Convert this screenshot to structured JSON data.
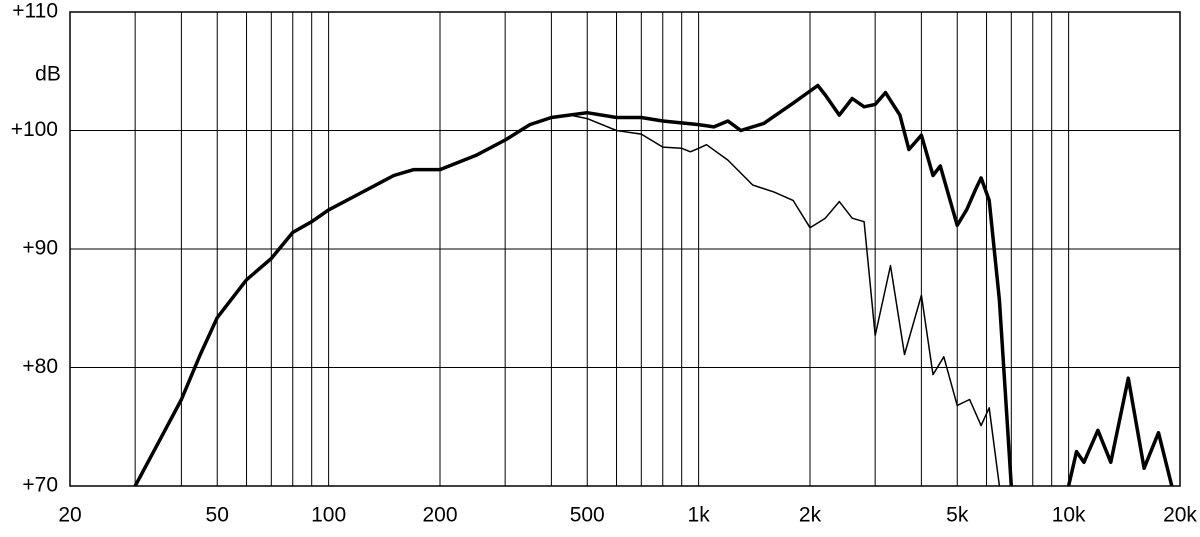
{
  "chart_data": {
    "type": "line",
    "y_label": "dB",
    "log_x": true,
    "grid": true,
    "xlim": [
      20,
      20000
    ],
    "ylim": [
      70,
      110
    ],
    "xticks": [
      20,
      50,
      100,
      200,
      500,
      {
        "value": 1000,
        "label": "1k"
      },
      {
        "value": 2000,
        "label": "2k"
      },
      {
        "value": 5000,
        "label": "5k"
      },
      {
        "value": 10000,
        "label": "10k"
      },
      {
        "value": 20000,
        "label": "20k"
      }
    ],
    "xgrid": [
      30,
      40,
      60,
      70,
      80,
      90,
      300,
      400,
      600,
      700,
      800,
      900,
      3000,
      4000,
      6000,
      7000,
      8000,
      9000
    ],
    "yticks": [
      {
        "value": 70,
        "label": "+70"
      },
      {
        "value": 80,
        "label": "+80"
      },
      {
        "value": 90,
        "label": "+90"
      },
      {
        "value": 100,
        "label": "+100"
      },
      {
        "value": 110,
        "label": "+110"
      }
    ],
    "series": [
      {
        "color": "#000000",
        "width": 3.5,
        "x": [
          30,
          35,
          40,
          45,
          50,
          60,
          70,
          80,
          90,
          100,
          120,
          150,
          170,
          200,
          250,
          300,
          350,
          400,
          500,
          600,
          700,
          800,
          1000,
          1100,
          1200,
          1300,
          1500,
          1800,
          2100,
          2200,
          2400,
          2600,
          2800,
          3000,
          3200,
          3500,
          3700,
          4000,
          4300,
          4500,
          5000,
          5300,
          5600,
          5800,
          6100,
          6500,
          7000,
          8500,
          10000,
          10500,
          11000,
          12000,
          13000,
          14500,
          16000,
          17500,
          19000
        ],
        "values": [
          70,
          73.9,
          77.3,
          81.1,
          84.2,
          87.4,
          89.2,
          91.4,
          92.3,
          93.3,
          94.6,
          96.2,
          96.7,
          96.7,
          97.9,
          99.2,
          100.5,
          101.1,
          101.5,
          101.1,
          101.1,
          100.8,
          100.5,
          100.3,
          100.8,
          100,
          100.6,
          102.3,
          103.8,
          103,
          101.3,
          102.7,
          102,
          102.2,
          103.2,
          101.3,
          98.4,
          99.6,
          96.2,
          97,
          92,
          93.3,
          95,
          96,
          94.1,
          85.7,
          70,
          null,
          70,
          72.9,
          72,
          74.7,
          72,
          79.1,
          71.5,
          74.5,
          70
        ]
      },
      {
        "color": "#000000",
        "width": 1.5,
        "x": [
          400,
          450,
          500,
          600,
          700,
          800,
          900,
          950,
          1000,
          1050,
          1200,
          1400,
          1600,
          1800,
          2000,
          2200,
          2400,
          2600,
          2800,
          3000,
          3300,
          3600,
          4000,
          4300,
          4600,
          5000,
          5400,
          5800,
          6100,
          6500
        ],
        "values": [
          101.1,
          101.3,
          101,
          100,
          99.7,
          98.6,
          98.5,
          98.2,
          98.5,
          98.8,
          97.5,
          95.4,
          94.8,
          94.1,
          91.8,
          92.6,
          94,
          92.6,
          92.3,
          82.7,
          88.6,
          81.1,
          86.1,
          79.4,
          80.9,
          76.8,
          77.3,
          75.1,
          76.6,
          70
        ]
      }
    ]
  }
}
